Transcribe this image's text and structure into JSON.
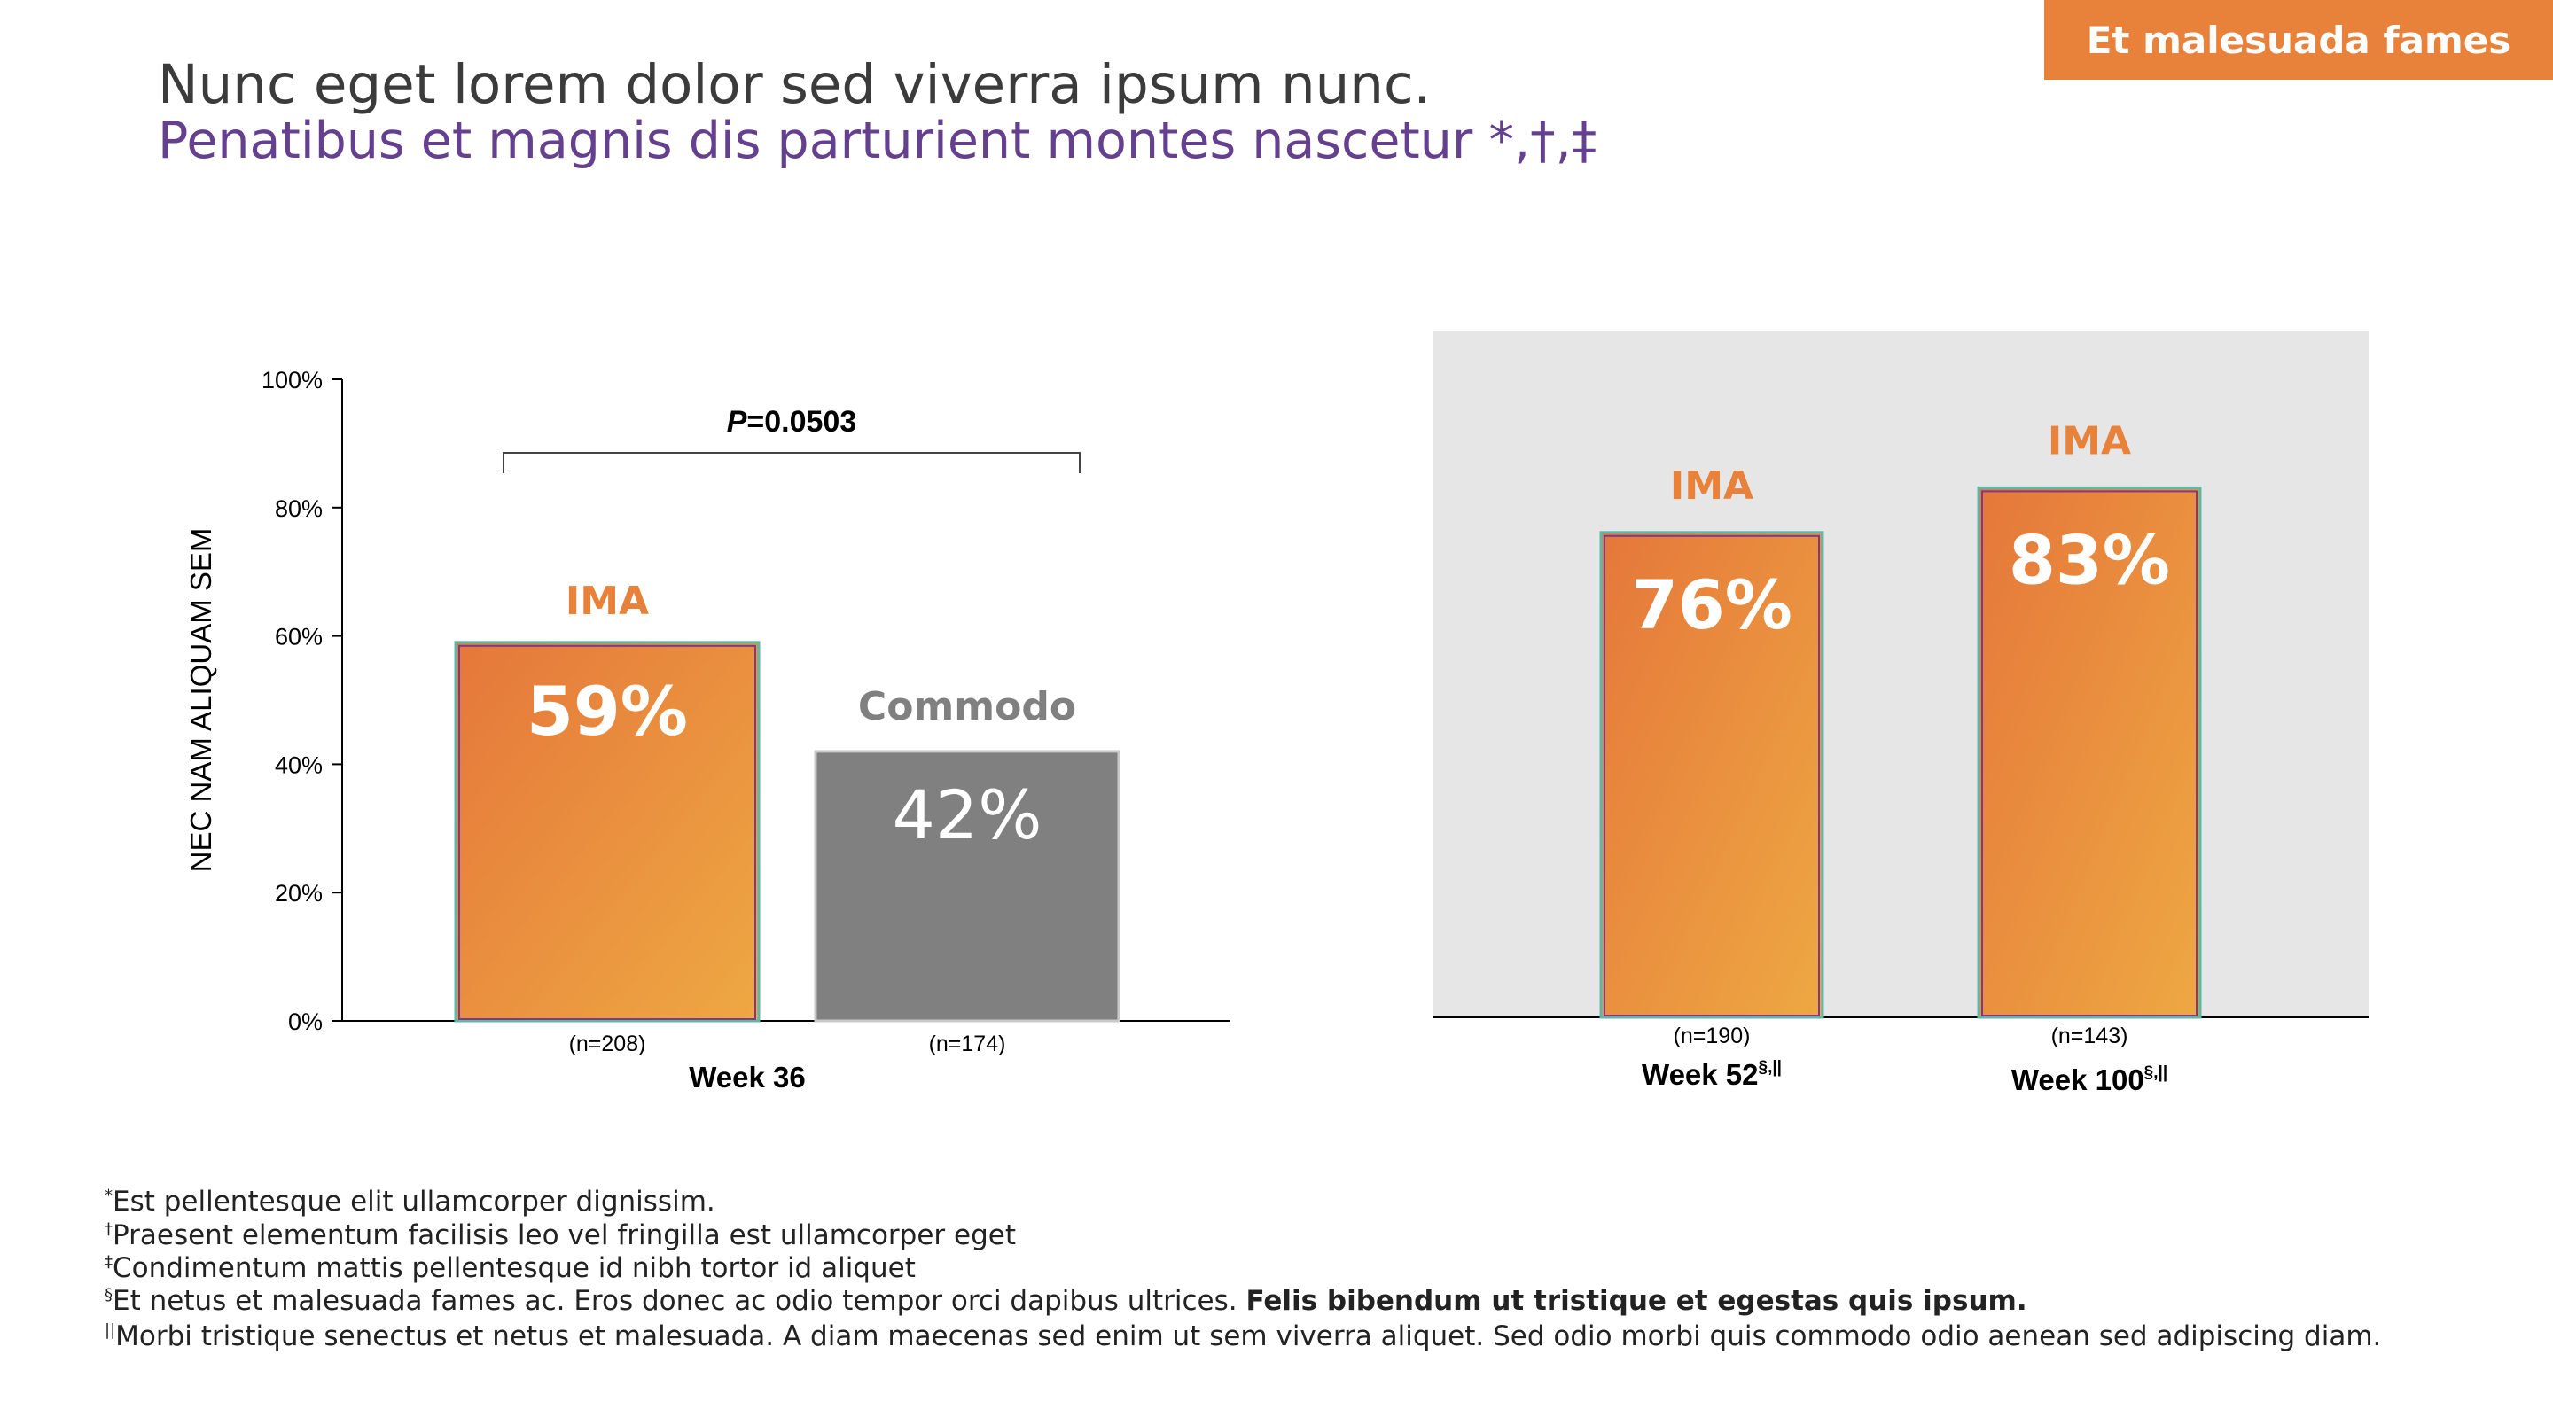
{
  "header": {
    "badge": "Et malesuada fames",
    "title": "Nunc eget lorem dolor sed viverra ipsum nunc.",
    "subtitle": "Penatibus et magnis dis parturient montes nascetur *,†,‡"
  },
  "chart_data": [
    {
      "type": "bar",
      "ylabel": "NEC NAM ALIQUAM SEM",
      "ylim": [
        0,
        100
      ],
      "yticks": [
        "0%",
        "20%",
        "40%",
        "60%",
        "80%",
        "100%"
      ],
      "xlabel": "Week 36",
      "significance": {
        "label_italic": "P",
        "label_rest": "=0.0503"
      },
      "bars": [
        {
          "label": "IMA",
          "value": 59,
          "value_label": "59%",
          "n": "(n=208)",
          "color": "#e87e39"
        },
        {
          "label": "Commodo",
          "value": 42,
          "value_label": "42%",
          "n": "(n=174)",
          "color": "#808080"
        }
      ]
    },
    {
      "type": "bar",
      "background": "#e6e6e6",
      "ylim": [
        0,
        100
      ],
      "bars": [
        {
          "label": "IMA",
          "value": 76,
          "value_label": "76%",
          "n": "(n=190)",
          "week": "Week 52",
          "week_sup": "§,||",
          "color": "#e87e39"
        },
        {
          "label": "IMA",
          "value": 83,
          "value_label": "83%",
          "n": "(n=143)",
          "week": "Week 100",
          "week_sup": "§,||",
          "color": "#e87e39"
        }
      ]
    }
  ],
  "footnotes": [
    {
      "mark": "*",
      "text": "Est pellentesque elit ullamcorper dignissim."
    },
    {
      "mark": "†",
      "text": "Praesent elementum facilisis leo vel fringilla est ullamcorper eget"
    },
    {
      "mark": "‡",
      "text": "Condimentum mattis pellentesque id nibh tortor id aliquet"
    },
    {
      "mark": "§",
      "text": "Et netus et malesuada fames ac. Eros donec ac odio tempor orci dapibus ultrices. ",
      "bold": "Felis bibendum ut tristique et egestas quis ipsum."
    },
    {
      "mark": "||",
      "text": "Morbi tristique senectus et netus et malesuada. A diam maecenas sed enim ut sem viverra aliquet. Sed odio morbi quis commodo odio aenean sed adipiscing diam."
    }
  ],
  "colors": {
    "accent": "#e8813a",
    "subtitle": "#65408e",
    "bar_teal_outline": "#5fb8a6",
    "bar_purple_outline": "#7d3a8c"
  }
}
